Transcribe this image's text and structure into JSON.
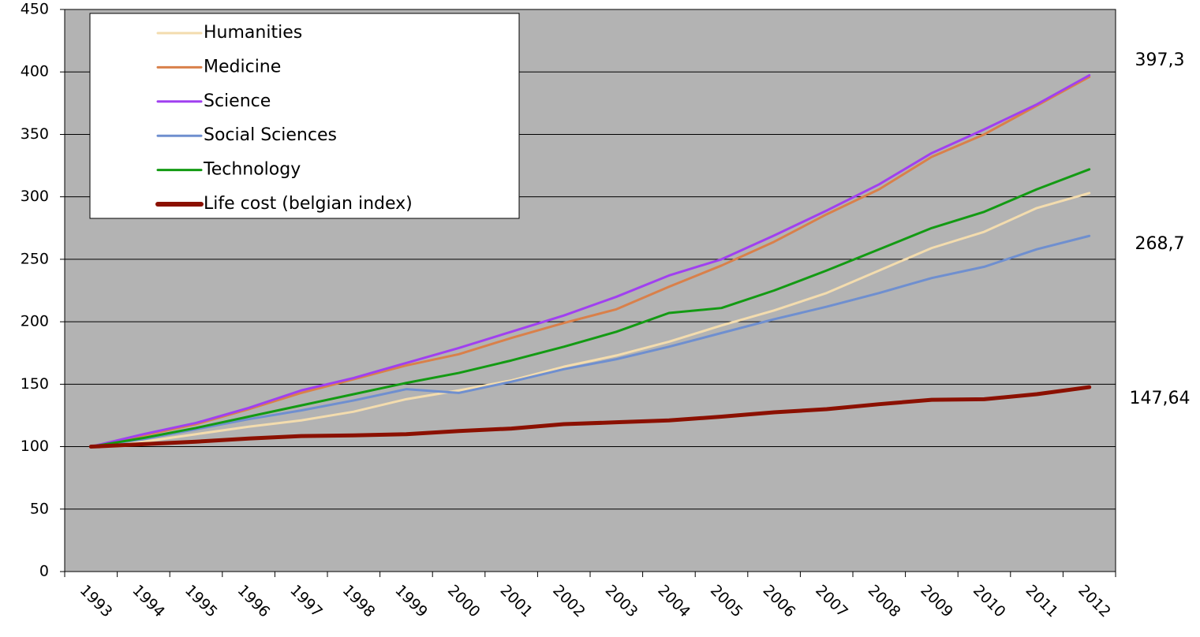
{
  "chart_data": {
    "type": "line",
    "categories": [
      "1993",
      "1994",
      "1995",
      "1996",
      "1997",
      "1998",
      "1999",
      "2000",
      "2001",
      "2002",
      "2003",
      "2004",
      "2005",
      "2006",
      "2007",
      "2008",
      "2009",
      "2010",
      "2011",
      "2012"
    ],
    "series": [
      {
        "name": "Humanities",
        "color": "#f3dcae",
        "values": [
          100,
          104,
          110,
          116,
          121,
          128,
          138,
          145,
          153,
          164,
          173,
          184,
          197,
          209,
          223,
          241,
          259,
          272,
          291,
          303
        ]
      },
      {
        "name": "Medicine",
        "color": "#d9804a",
        "values": [
          100,
          109,
          118,
          130,
          143,
          154,
          165,
          174,
          187,
          199,
          210,
          228,
          245,
          264,
          286,
          306,
          332,
          350,
          373,
          396
        ]
      },
      {
        "name": "Science",
        "color": "#a040f0",
        "values": [
          100,
          110,
          119,
          131,
          145,
          155,
          167,
          179,
          192,
          205,
          220,
          237,
          250,
          269,
          289,
          310,
          335,
          354,
          374,
          397.3
        ]
      },
      {
        "name": "Social Sciences",
        "color": "#6f8fcf",
        "values": [
          100,
          106,
          114,
          122,
          129,
          137,
          146,
          143,
          152,
          162,
          170,
          180,
          191,
          202,
          212,
          223,
          235,
          244,
          258,
          268.7
        ]
      },
      {
        "name": "Technology",
        "color": "#139a13",
        "values": [
          100,
          107,
          115,
          124,
          133,
          142,
          151,
          159,
          169,
          180,
          192,
          207,
          211,
          225,
          241,
          258,
          275,
          288,
          306,
          322
        ]
      },
      {
        "name": "Life cost (belgian index)",
        "color": "#8b1000",
        "values": [
          100,
          102,
          104,
          106.5,
          108.5,
          109,
          110,
          112.5,
          114.5,
          118,
          119.5,
          121,
          124,
          127.5,
          130,
          134,
          137.5,
          138,
          142,
          147.64
        ]
      }
    ],
    "annotations": [
      "397,3",
      "268,7",
      "147,64"
    ],
    "ylim": [
      0,
      450
    ],
    "yticks": [
      0,
      50,
      100,
      150,
      200,
      250,
      300,
      350,
      400,
      450
    ],
    "grid": true
  }
}
